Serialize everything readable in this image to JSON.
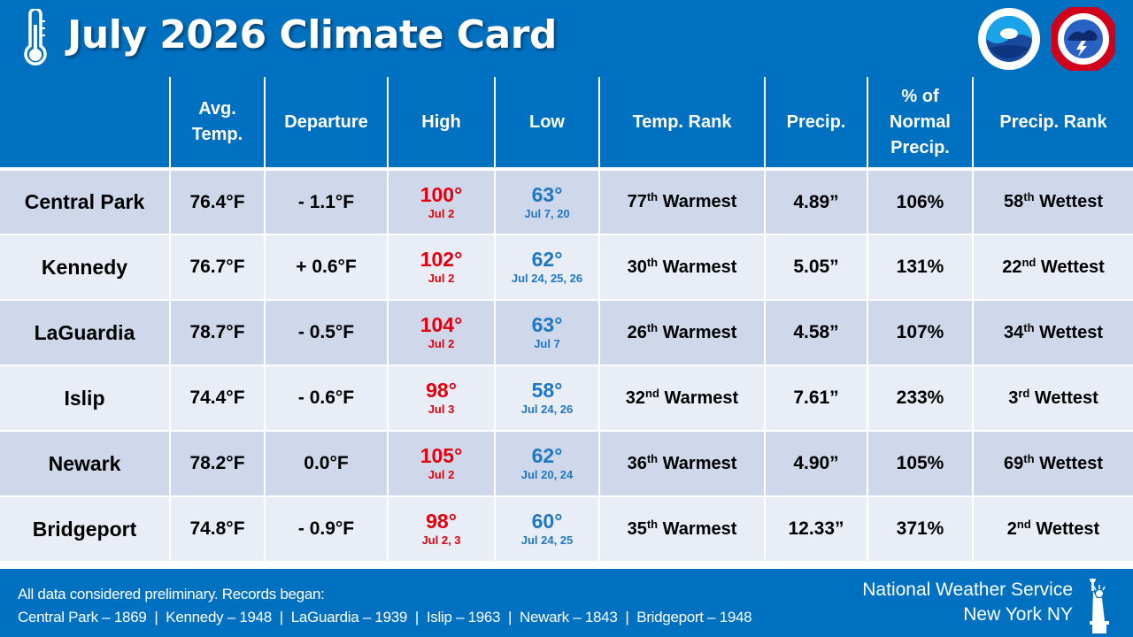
{
  "header": {
    "title": "July 2026 Climate Card",
    "icon": "thermometer-icon",
    "logos": [
      "noaa-logo",
      "nws-logo"
    ]
  },
  "table": {
    "columns": [
      {
        "label": "",
        "lines": [
          ""
        ]
      },
      {
        "label": "Avg. Temp.",
        "lines": [
          "Avg.",
          "Temp."
        ]
      },
      {
        "label": "Departure",
        "lines": [
          "Departure"
        ]
      },
      {
        "label": "High",
        "lines": [
          "High"
        ]
      },
      {
        "label": "Low",
        "lines": [
          "Low"
        ]
      },
      {
        "label": "Temp. Rank",
        "lines": [
          "Temp. Rank"
        ]
      },
      {
        "label": "Precip.",
        "lines": [
          "Precip."
        ]
      },
      {
        "label": "% of Normal Precip.",
        "lines": [
          "% of",
          "Normal",
          "Precip."
        ]
      },
      {
        "label": "Precip. Rank",
        "lines": [
          "Precip. Rank"
        ]
      }
    ],
    "rows": [
      {
        "station": "Central Park",
        "avg_temp": "76.4°F",
        "departure": "- 1.1°F",
        "high": "100°",
        "high_date": "Jul 2",
        "low": "63°",
        "low_date": "Jul 7, 20",
        "temp_rank_num": "77",
        "temp_rank_suffix": "th",
        "temp_rank_word": "Warmest",
        "precip": "4.89”",
        "pct_normal": "106%",
        "precip_rank_num": "58",
        "precip_rank_suffix": "th",
        "precip_rank_word": "Wettest"
      },
      {
        "station": "Kennedy",
        "avg_temp": "76.7°F",
        "departure": "+ 0.6°F",
        "high": "102°",
        "high_date": "Jul 2",
        "low": "62°",
        "low_date": "Jul 24, 25, 26",
        "temp_rank_num": "30",
        "temp_rank_suffix": "th",
        "temp_rank_word": "Warmest",
        "precip": "5.05”",
        "pct_normal": "131%",
        "precip_rank_num": "22",
        "precip_rank_suffix": "nd",
        "precip_rank_word": "Wettest"
      },
      {
        "station": "LaGuardia",
        "avg_temp": "78.7°F",
        "departure": "- 0.5°F",
        "high": "104°",
        "high_date": "Jul 2",
        "low": "63°",
        "low_date": "Jul 7",
        "temp_rank_num": "26",
        "temp_rank_suffix": "th",
        "temp_rank_word": "Warmest",
        "precip": "4.58”",
        "pct_normal": "107%",
        "precip_rank_num": "34",
        "precip_rank_suffix": "th",
        "precip_rank_word": "Wettest"
      },
      {
        "station": "Islip",
        "avg_temp": "74.4°F",
        "departure": "- 0.6°F",
        "high": "98°",
        "high_date": "Jul 3",
        "low": "58°",
        "low_date": "Jul 24, 26",
        "temp_rank_num": "32",
        "temp_rank_suffix": "nd",
        "temp_rank_word": "Warmest",
        "precip": "7.61”",
        "pct_normal": "233%",
        "precip_rank_num": "3",
        "precip_rank_suffix": "rd",
        "precip_rank_word": "Wettest"
      },
      {
        "station": "Newark",
        "avg_temp": "78.2°F",
        "departure": "0.0°F",
        "high": "105°",
        "high_date": "Jul 2",
        "low": "62°",
        "low_date": "Jul 20, 24",
        "temp_rank_num": "36",
        "temp_rank_suffix": "th",
        "temp_rank_word": "Warmest",
        "precip": "4.90”",
        "pct_normal": "105%",
        "precip_rank_num": "69",
        "precip_rank_suffix": "th",
        "precip_rank_word": "Wettest"
      },
      {
        "station": "Bridgeport",
        "avg_temp": "74.8°F",
        "departure": "- 0.9°F",
        "high": "98°",
        "high_date": "Jul 2, 3",
        "low": "60°",
        "low_date": "Jul 24, 25",
        "temp_rank_num": "35",
        "temp_rank_suffix": "th",
        "temp_rank_word": "Warmest",
        "precip": "12.33”",
        "pct_normal": "371%",
        "precip_rank_num": "2",
        "precip_rank_suffix": "nd",
        "precip_rank_word": "Wettest"
      }
    ]
  },
  "footer": {
    "note_line1": "All data considered preliminary. Records began:",
    "note_line2": "Central Park – 1869  |  Kennedy – 1948  |  LaGuardia – 1939  |  Islip – 1963  |  Newark – 1843  |  Bridgeport – 1948",
    "office_line1": "National Weather Service",
    "office_line2": "New York NY",
    "icon": "statue-of-liberty-icon"
  },
  "colors": {
    "brand_blue": "#0070c0",
    "row_dark": "#cfd8ea",
    "row_light": "#e9edf5",
    "high_red": "#e0000e",
    "low_blue": "#1f77c4"
  }
}
